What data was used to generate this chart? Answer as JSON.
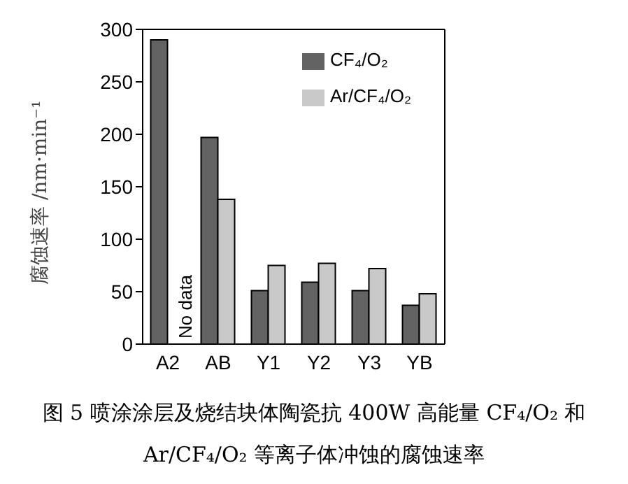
{
  "chart_data": {
    "type": "bar",
    "title": "图 5 喷涂涂层及烧结块体陶瓷抗 400W 高能量 CF₄/O₂ 和 Ar/CF₄/O₂ 等离子体冲蚀的腐蚀速率",
    "ylabel": "腐蚀速率 /nm·min⁻¹",
    "categories": [
      "A2",
      "AB",
      "Y1",
      "Y2",
      "Y3",
      "YB"
    ],
    "series": [
      {
        "name": "CF₄/O₂",
        "color": "#636363",
        "values": [
          290,
          197,
          51,
          59,
          51,
          37
        ]
      },
      {
        "name": "Ar/CF₄/O₂",
        "color": "#c9c9c9",
        "values": [
          null,
          138,
          75,
          77,
          72,
          48
        ]
      }
    ],
    "ylim": [
      0,
      300
    ],
    "yticks": [
      0,
      50,
      100,
      150,
      200,
      250,
      300
    ],
    "legend": "top right",
    "grid": false,
    "annotations": [
      {
        "text": "No data",
        "x": "A2",
        "y": 0
      }
    ]
  }
}
